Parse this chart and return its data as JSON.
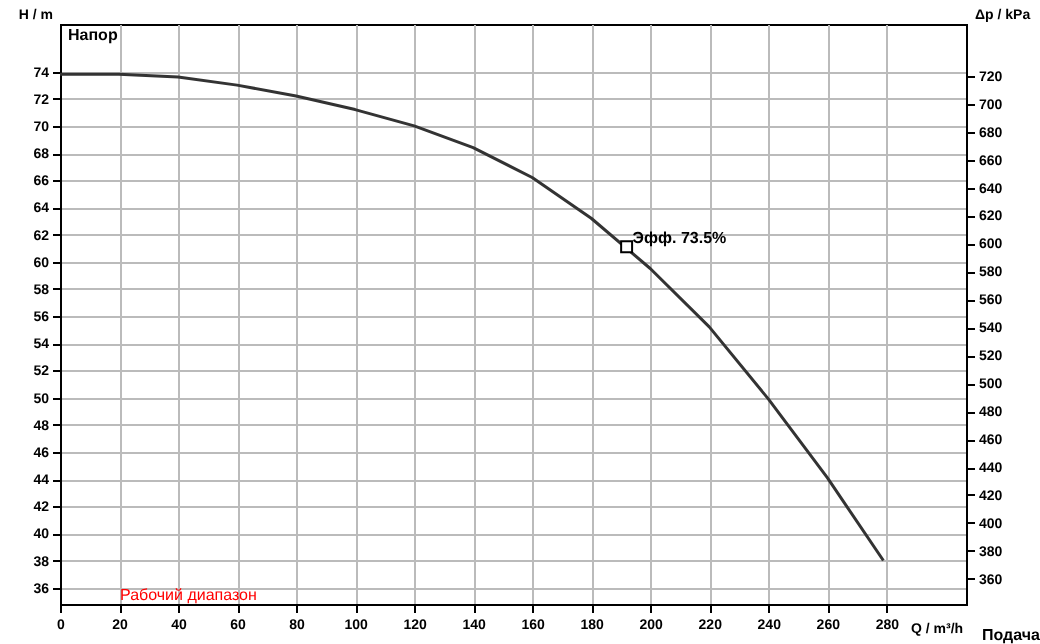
{
  "chart_data": {
    "type": "line",
    "x": [
      0,
      20,
      40,
      60,
      80,
      100,
      120,
      140,
      160,
      180,
      200,
      220,
      240,
      260,
      279
    ],
    "series": [
      {
        "color": "#333333",
        "values": [
          73.8,
          73.8,
          73.6,
          73.0,
          72.2,
          71.2,
          70.0,
          68.4,
          66.2,
          63.2,
          59.5,
          55.2,
          49.9,
          44.1,
          38.0
        ]
      },
      {
        "type": "scatter",
        "marker": "square",
        "color": "#000000",
        "x": [
          192
        ],
        "values": [
          61.1
        ]
      }
    ],
    "xlabel": "Q / m³/h",
    "ylabel": "H / m",
    "y2label": "Δp / kPa",
    "xlim": [
      0,
      307
    ],
    "xticks": [
      0,
      20,
      40,
      60,
      80,
      100,
      120,
      140,
      160,
      180,
      200,
      220,
      240,
      260,
      280
    ],
    "ylim": [
      34.8,
      77.5
    ],
    "yticks": [
      36,
      38,
      40,
      42,
      44,
      46,
      48,
      50,
      52,
      54,
      56,
      58,
      60,
      62,
      64,
      66,
      68,
      70,
      72,
      74
    ],
    "y2lim": [
      342,
      757
    ],
    "y2ticks": [
      360,
      380,
      400,
      420,
      440,
      460,
      480,
      500,
      520,
      540,
      560,
      580,
      600,
      620,
      640,
      660,
      680,
      700,
      720
    ],
    "grid": true,
    "annotations": [
      "Напор",
      {
        "text": "Эфф.  73.5%",
        "x": 192,
        "y": 61.1
      },
      "Рабочий диапазон",
      "Подача"
    ]
  }
}
